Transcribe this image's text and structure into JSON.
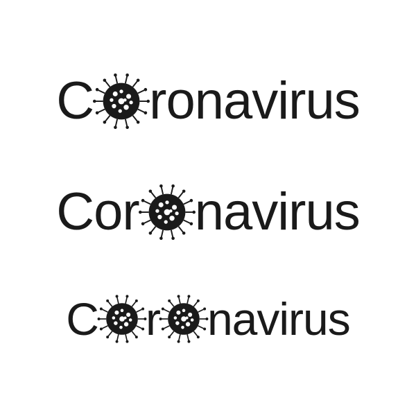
{
  "text_color": "#1a1a1a",
  "background_color": "#ffffff",
  "icon_fill": "#1a1a1a",
  "rows": [
    {
      "font_size_px": 76,
      "icon_size_px": 88,
      "segments": [
        {
          "kind": "text",
          "value": "C"
        },
        {
          "kind": "virus"
        },
        {
          "kind": "text",
          "value": "ronavirus"
        }
      ]
    },
    {
      "font_size_px": 76,
      "icon_size_px": 88,
      "segments": [
        {
          "kind": "text",
          "value": "Cor"
        },
        {
          "kind": "virus"
        },
        {
          "kind": "text",
          "value": "navirus"
        }
      ]
    },
    {
      "font_size_px": 66,
      "icon_size_px": 76,
      "segments": [
        {
          "kind": "text",
          "value": "C"
        },
        {
          "kind": "virus"
        },
        {
          "kind": "text",
          "value": "r"
        },
        {
          "kind": "virus"
        },
        {
          "kind": "text",
          "value": "navirus"
        }
      ]
    }
  ]
}
